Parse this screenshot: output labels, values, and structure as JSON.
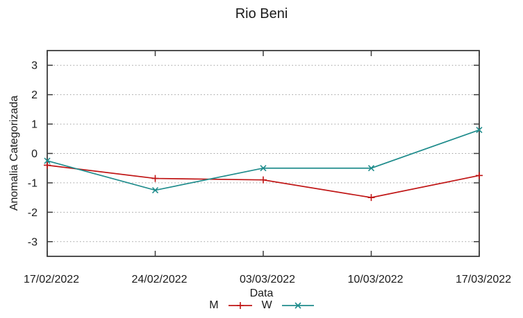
{
  "chart_data": {
    "type": "line",
    "title": "Rio Beni",
    "xlabel": "Data",
    "ylabel": "Anomalia Categorizada",
    "x_categories": [
      "17/02/2022",
      "24/02/2022",
      "03/03/2022",
      "10/03/2022",
      "17/03/2022"
    ],
    "y_ticks": [
      3,
      2,
      1,
      0,
      -1,
      -2,
      -3
    ],
    "ylim": [
      -3.5,
      3.5
    ],
    "grid": {
      "horizontal_dotted": true,
      "vertical": false
    },
    "legend_position": "bottom-center",
    "series": [
      {
        "name": "M",
        "color": "#c01515",
        "marker": "plus",
        "values": [
          -0.4,
          -0.85,
          -0.9,
          -1.5,
          -0.75
        ]
      },
      {
        "name": "W",
        "color": "#1f8c8c",
        "marker": "cross",
        "values": [
          -0.25,
          -1.25,
          -0.5,
          -0.5,
          0.8
        ]
      }
    ]
  },
  "colors": {
    "axis": "#3c3c3c",
    "grid": "#9c9c9c",
    "text": "#1a1a1a",
    "background": "#ffffff"
  }
}
